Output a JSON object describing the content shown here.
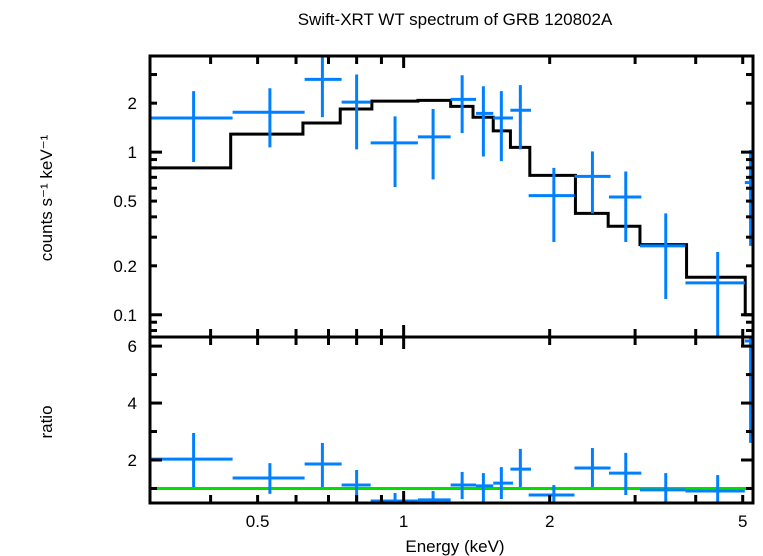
{
  "chart_data": [
    {
      "type": "scatter",
      "panel": "spectrum",
      "title": "Swift-XRT WT spectrum of GRB 120802A",
      "xlabel": "Energy (keV)",
      "ylabel": "counts s⁻¹ keV⁻¹",
      "xscale": "log",
      "yscale": "log",
      "xlim": [
        0.3,
        5.25
      ],
      "ylim": [
        0.073,
        3.9
      ],
      "xticks": [
        {
          "v": 0.5,
          "label": "0.5"
        },
        {
          "v": 1,
          "label": "1"
        },
        {
          "v": 2,
          "label": "2"
        },
        {
          "v": 5,
          "label": "5"
        }
      ],
      "yticks": [
        {
          "v": 2,
          "label": "2"
        },
        {
          "v": 1,
          "label": "1"
        },
        {
          "v": 0.5,
          "label": "0.5"
        },
        {
          "v": 0.2,
          "label": "0.2"
        },
        {
          "v": 0.1,
          "label": "0.1"
        }
      ],
      "data_color": "#0080ff",
      "model_color": "#000000",
      "data": [
        {
          "x": 0.369,
          "xlo": 0.3,
          "xhi": 0.444,
          "y": 1.62,
          "ylo": 0.87,
          "yhi": 2.37
        },
        {
          "x": 0.53,
          "xlo": 0.444,
          "xhi": 0.625,
          "y": 1.76,
          "ylo": 1.07,
          "yhi": 2.47
        },
        {
          "x": 0.68,
          "xlo": 0.625,
          "xhi": 0.745,
          "y": 2.8,
          "ylo": 1.64,
          "yhi": 4.0
        },
        {
          "x": 0.8,
          "xlo": 0.745,
          "xhi": 0.855,
          "y": 2.03,
          "ylo": 1.04,
          "yhi": 3.0
        },
        {
          "x": 0.96,
          "xlo": 0.855,
          "xhi": 1.07,
          "y": 1.14,
          "ylo": 0.61,
          "yhi": 1.66
        },
        {
          "x": 1.15,
          "xlo": 1.07,
          "xhi": 1.25,
          "y": 1.24,
          "ylo": 0.68,
          "yhi": 1.84
        },
        {
          "x": 1.32,
          "xlo": 1.25,
          "xhi": 1.41,
          "y": 2.11,
          "ylo": 1.31,
          "yhi": 2.97
        },
        {
          "x": 1.46,
          "xlo": 1.41,
          "xhi": 1.53,
          "y": 1.73,
          "ylo": 0.94,
          "yhi": 2.54
        },
        {
          "x": 1.59,
          "xlo": 1.53,
          "xhi": 1.68,
          "y": 1.62,
          "ylo": 0.88,
          "yhi": 2.37
        },
        {
          "x": 1.74,
          "xlo": 1.66,
          "xhi": 1.83,
          "y": 1.81,
          "ylo": 1.04,
          "yhi": 2.58
        },
        {
          "x": 2.04,
          "xlo": 1.81,
          "xhi": 2.25,
          "y": 0.54,
          "ylo": 0.28,
          "yhi": 0.8
        },
        {
          "x": 2.45,
          "xlo": 2.25,
          "xhi": 2.67,
          "y": 0.71,
          "ylo": 0.42,
          "yhi": 1.01
        },
        {
          "x": 2.87,
          "xlo": 2.65,
          "xhi": 3.09,
          "y": 0.53,
          "ylo": 0.28,
          "yhi": 0.76
        },
        {
          "x": 3.47,
          "xlo": 3.07,
          "xhi": 3.81,
          "y": 0.265,
          "ylo": 0.125,
          "yhi": 0.42
        },
        {
          "x": 4.44,
          "xlo": 3.81,
          "xhi": 5.05,
          "y": 0.157,
          "ylo": 0.05,
          "yhi": 0.243
        },
        {
          "x": 5.19,
          "xlo": 5.05,
          "xhi": 5.4,
          "y": 0.65,
          "ylo": 0.265,
          "yhi": 1.03
        }
      ],
      "model": {
        "edges": [
          0.3,
          0.44,
          0.62,
          0.74,
          0.86,
          1.07,
          1.25,
          1.39,
          1.53,
          1.66,
          1.82,
          2.26,
          2.64,
          3.07,
          3.83,
          5.06,
          5.25
        ],
        "values": [
          0.8,
          1.29,
          1.51,
          1.84,
          2.06,
          2.08,
          1.91,
          1.64,
          1.35,
          1.07,
          0.72,
          0.42,
          0.35,
          0.27,
          0.17,
          0.1
        ]
      }
    },
    {
      "type": "scatter",
      "panel": "ratio",
      "ylabel": "ratio",
      "xscale": "log",
      "yscale": "linear",
      "xlim": [
        0.3,
        5.25
      ],
      "ylim": [
        0.49,
        6.32
      ],
      "yticks": [
        {
          "v": 2,
          "label": "2"
        },
        {
          "v": 4,
          "label": "4"
        },
        {
          "v": 6,
          "label": "6"
        }
      ],
      "reference_line": 1,
      "reference_color": "#00e000",
      "data": [
        {
          "y": 2.03,
          "ylo": 1.05,
          "yhi": 2.95
        },
        {
          "y": 1.37,
          "ylo": 0.81,
          "yhi": 1.89
        },
        {
          "y": 1.86,
          "ylo": 1.05,
          "yhi": 2.6
        },
        {
          "y": 1.12,
          "ylo": 0.53,
          "yhi": 1.65
        },
        {
          "y": 0.56,
          "ylo": 0.3,
          "yhi": 0.84
        },
        {
          "y": 0.6,
          "ylo": 0.3,
          "yhi": 0.91
        },
        {
          "y": 1.12,
          "ylo": 0.63,
          "yhi": 1.58
        },
        {
          "y": 1.09,
          "ylo": 0.53,
          "yhi": 1.54
        },
        {
          "y": 1.19,
          "ylo": 0.63,
          "yhi": 1.75
        },
        {
          "y": 1.68,
          "ylo": 1.05,
          "yhi": 2.39
        },
        {
          "y": 0.77,
          "ylo": 0.3,
          "yhi": 1.12
        },
        {
          "y": 1.72,
          "ylo": 1.05,
          "yhi": 2.42
        },
        {
          "y": 1.54,
          "ylo": 0.77,
          "yhi": 2.25
        },
        {
          "y": 0.95,
          "ylo": 0.3,
          "yhi": 1.54
        },
        {
          "y": 0.91,
          "ylo": 0.3,
          "yhi": 1.47
        },
        {
          "y": 6.18,
          "ylo": 2.6,
          "yhi": 7.0
        }
      ]
    }
  ]
}
